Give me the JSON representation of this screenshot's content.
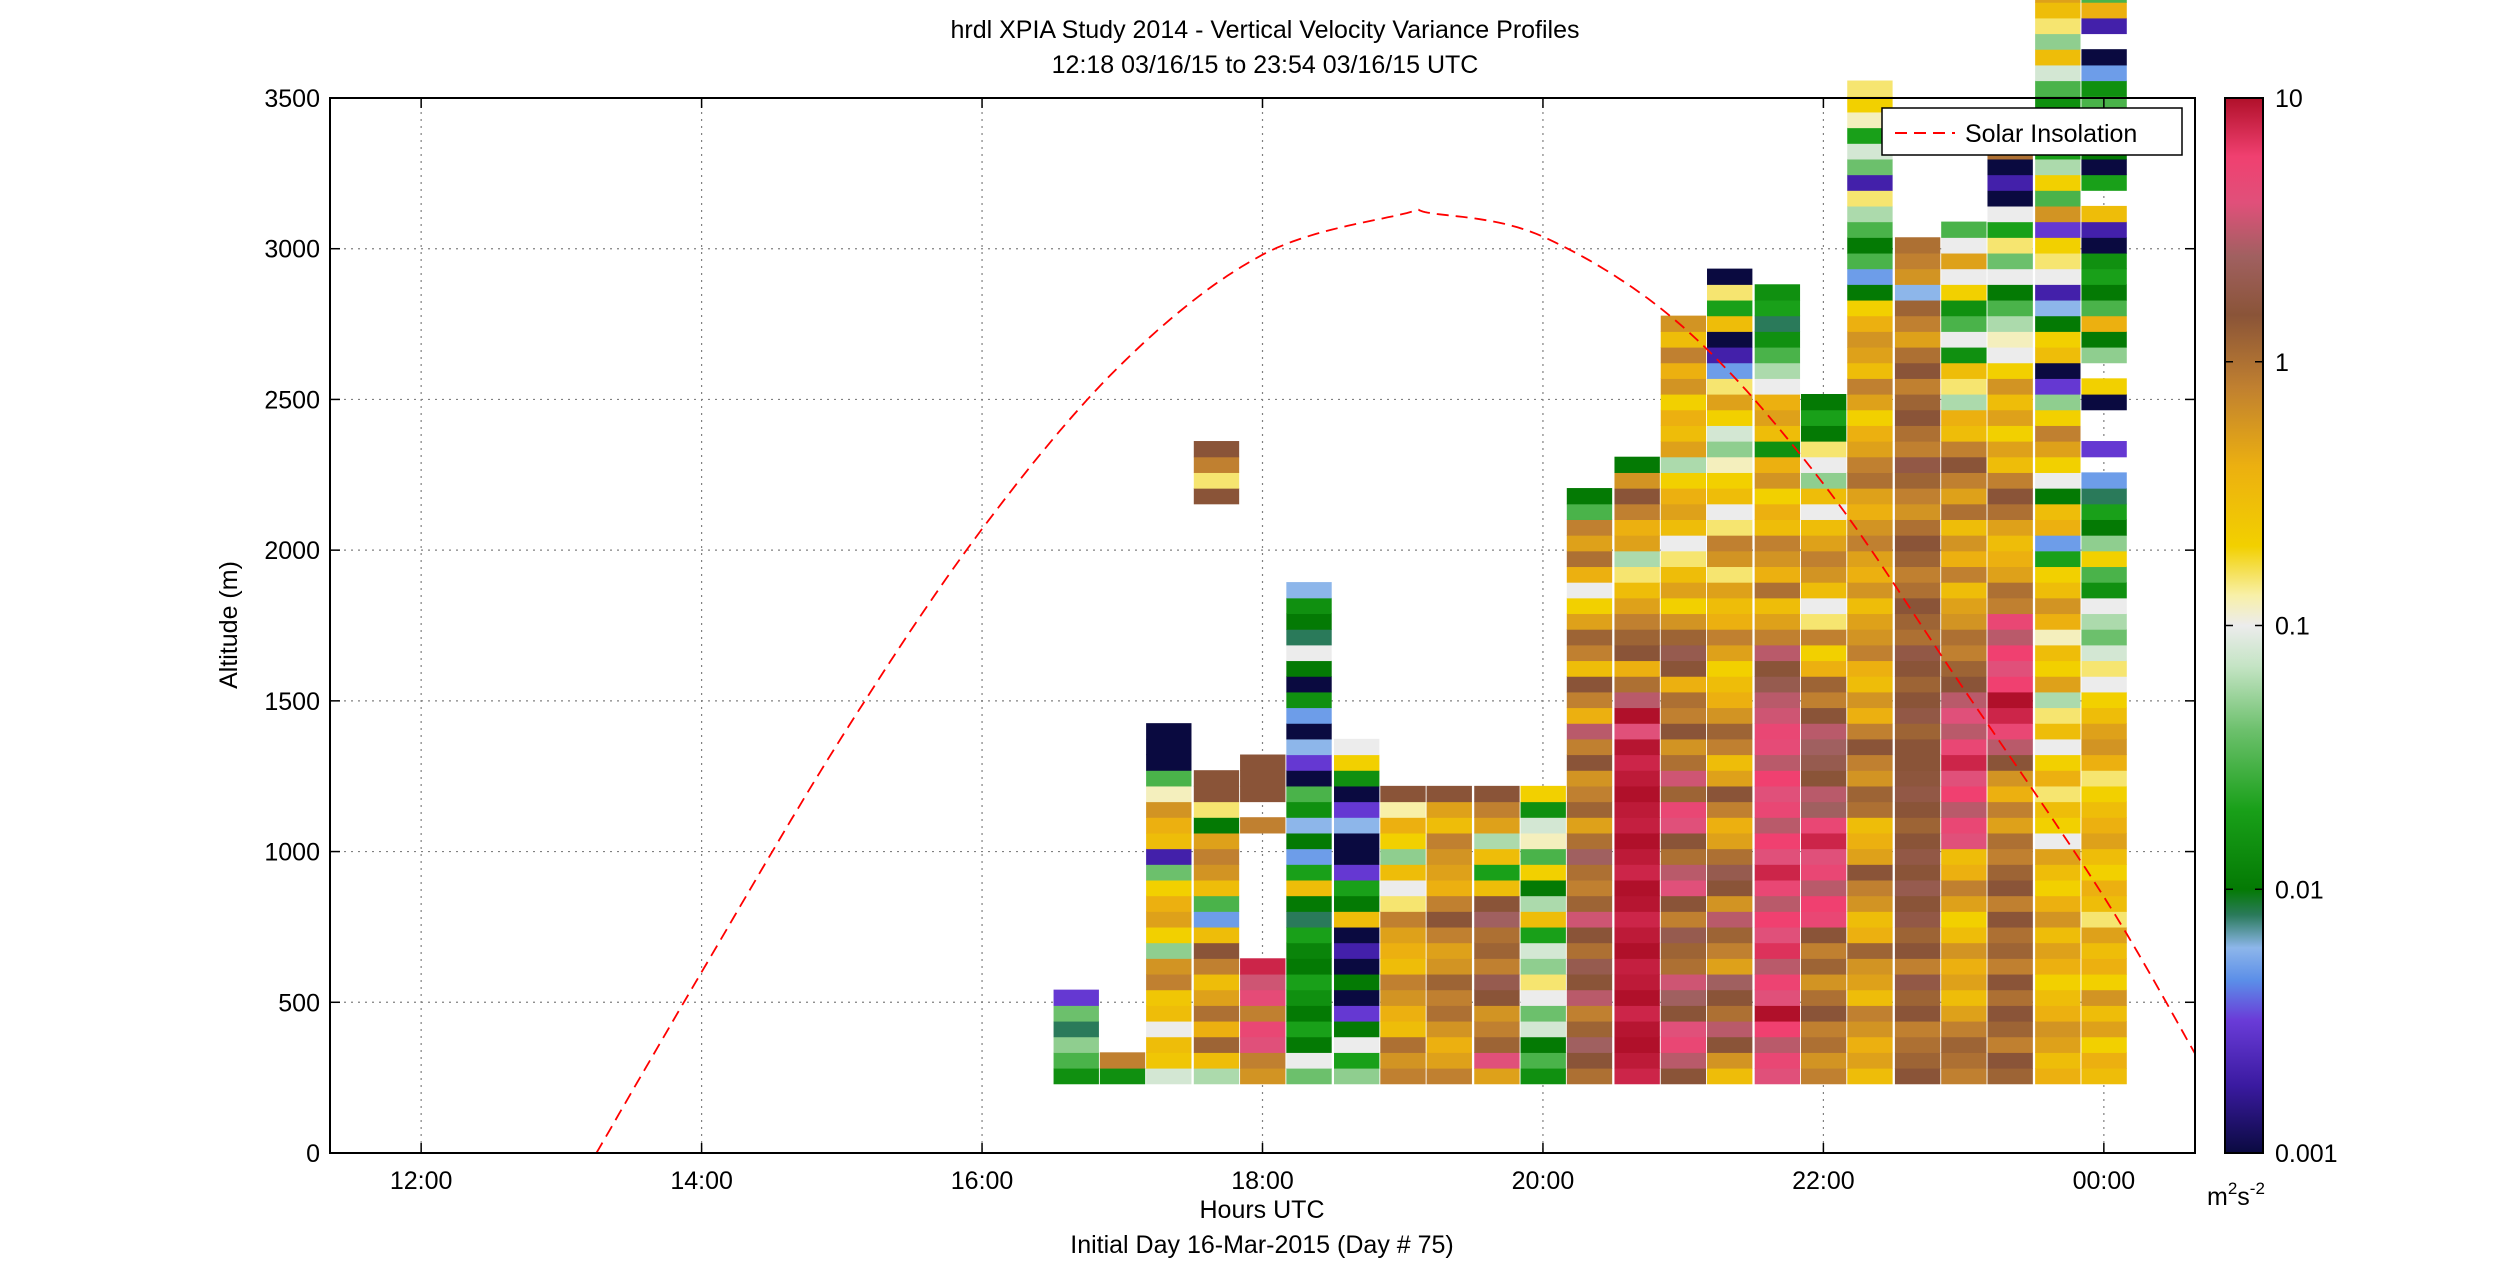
{
  "title": "hrdl XPIA Study 2014 - Vertical Velocity Variance Profiles",
  "subtitle": "12:18 03/16/15 to 23:54 03/16/15  UTC",
  "colors": {
    "background": "#ffffff",
    "axis": "#000000",
    "grid": "#808080",
    "insolation_line": "#ff0000"
  },
  "chart_data": {
    "type": "heatmap",
    "xlabel": "Hours UTC",
    "xlabel2": "Initial Day 16-Mar-2015 (Day # 75)",
    "ylabel": "Altitude (m)",
    "xlim": [
      11.35,
      24.65
    ],
    "ylim": [
      0,
      3500
    ],
    "x_ticks": [
      {
        "value": 12,
        "label": "12:00"
      },
      {
        "value": 14,
        "label": "14:00"
      },
      {
        "value": 16,
        "label": "16:00"
      },
      {
        "value": 18,
        "label": "18:00"
      },
      {
        "value": 20,
        "label": "20:00"
      },
      {
        "value": 22,
        "label": "22:00"
      },
      {
        "value": 24,
        "label": "00:00"
      }
    ],
    "y_ticks": [
      {
        "value": 0,
        "label": "0"
      },
      {
        "value": 500,
        "label": "500"
      },
      {
        "value": 1000,
        "label": "1000"
      },
      {
        "value": 1500,
        "label": "1500"
      },
      {
        "value": 2000,
        "label": "2000"
      },
      {
        "value": 2500,
        "label": "2500"
      },
      {
        "value": 3000,
        "label": "3000"
      },
      {
        "value": 3500,
        "label": "3500"
      }
    ],
    "grid": true,
    "legend": {
      "placement": "top-right",
      "entries": [
        "Solar Insolation"
      ]
    },
    "colorbar": {
      "scale": "log",
      "range": [
        0.001,
        10
      ],
      "units_base": "m",
      "units_exp1": "2",
      "units_mid": "s",
      "units_exp2": "-2",
      "ticks": [
        {
          "value": 10,
          "label": "10"
        },
        {
          "value": 1,
          "label": "1"
        },
        {
          "value": 0.1,
          "label": "0.1"
        },
        {
          "value": 0.01,
          "label": "0.01"
        },
        {
          "value": 0.001,
          "label": "0.001"
        }
      ],
      "stops": [
        {
          "v": 0.001,
          "c": "#0a0a40"
        },
        {
          "v": 0.0018,
          "c": "#3a1aa0"
        },
        {
          "v": 0.0032,
          "c": "#6a3cd8"
        },
        {
          "v": 0.0045,
          "c": "#5b8ee8"
        },
        {
          "v": 0.006,
          "c": "#8db6ea"
        },
        {
          "v": 0.008,
          "c": "#2a7a5a"
        },
        {
          "v": 0.01,
          "c": "#047a04"
        },
        {
          "v": 0.02,
          "c": "#19a019"
        },
        {
          "v": 0.04,
          "c": "#6cc06c"
        },
        {
          "v": 0.07,
          "c": "#c4e4c4"
        },
        {
          "v": 0.1,
          "c": "#ececec"
        },
        {
          "v": 0.13,
          "c": "#f8f0a8"
        },
        {
          "v": 0.2,
          "c": "#f2d000"
        },
        {
          "v": 0.4,
          "c": "#ecb010"
        },
        {
          "v": 0.8,
          "c": "#c08030"
        },
        {
          "v": 1.5,
          "c": "#8a5438"
        },
        {
          "v": 2.5,
          "c": "#a06060"
        },
        {
          "v": 4.0,
          "c": "#e0507a"
        },
        {
          "v": 6.0,
          "c": "#f04070"
        },
        {
          "v": 10,
          "c": "#b0102a"
        }
      ]
    },
    "bin_width_hours": 0.32,
    "gate_m": 52,
    "profiles": [
      {
        "t": 16.67,
        "values": [
          0.015,
          0.03,
          0.05,
          0.008,
          0.04,
          0.003
        ]
      },
      {
        "t": 17.0,
        "values": [
          0.015,
          0.8
        ]
      },
      {
        "t": 17.33,
        "values": [
          0.08,
          0.25,
          0.3,
          0.1,
          0.3,
          0.25,
          0.8,
          0.6,
          0.05,
          0.2,
          0.5,
          0.4,
          0.2,
          0.04,
          0.002,
          0.3,
          0.4,
          0.6,
          0.12,
          0.03,
          0.001,
          0.001,
          0.001
        ]
      },
      {
        "t": 17.67,
        "values": [
          0.06,
          0.3,
          1.2,
          0.4,
          1.0,
          0.5,
          0.3,
          0.8,
          1.5,
          0.3,
          0.005,
          0.03,
          0.3,
          0.6,
          0.8,
          0.5,
          0.01,
          0.15,
          1.5,
          1.5,
          null,
          null,
          null,
          null,
          null,
          null,
          null,
          null,
          null,
          null,
          null,
          null,
          null,
          null,
          null,
          null,
          null,
          1.5,
          0.15,
          0.8,
          1.5
        ]
      },
      {
        "t": 18.0,
        "values": [
          0.6,
          0.8,
          4.0,
          5.0,
          0.8,
          4.5,
          3.5,
          8.0,
          null,
          null,
          null,
          null,
          null,
          null,
          null,
          null,
          0.8,
          null,
          1.5,
          1.5,
          1.5
        ]
      },
      {
        "t": 18.33,
        "values": [
          0.04,
          0.1,
          0.01,
          0.02,
          0.01,
          0.015,
          0.02,
          0.01,
          0.012,
          0.02,
          0.008,
          0.01,
          0.3,
          0.02,
          0.005,
          0.01,
          0.006,
          0.015,
          0.03,
          0.001,
          0.003,
          0.006,
          0.001,
          0.005,
          0.015,
          0.001,
          0.01,
          0.1,
          0.008,
          0.01,
          0.015,
          0.006
        ]
      },
      {
        "t": 18.67,
        "values": [
          0.05,
          0.02,
          0.1,
          0.01,
          0.003,
          0.001,
          0.01,
          0.001,
          0.002,
          0.001,
          0.3,
          0.01,
          0.02,
          0.003,
          0.001,
          0.001,
          0.006,
          0.003,
          0.001,
          0.015,
          0.2,
          0.1
        ]
      },
      {
        "t": 19.0,
        "values": [
          0.8,
          0.6,
          1.0,
          0.3,
          0.4,
          0.6,
          0.8,
          0.3,
          0.4,
          0.5,
          0.8,
          0.15,
          0.1,
          0.3,
          0.05,
          0.2,
          0.4,
          0.13,
          1.5
        ]
      },
      {
        "t": 19.33,
        "values": [
          0.8,
          0.5,
          0.4,
          0.6,
          1.0,
          0.8,
          1.2,
          0.6,
          0.5,
          0.8,
          1.5,
          0.8,
          0.4,
          0.5,
          0.6,
          0.8,
          0.3,
          0.5,
          1.5
        ]
      },
      {
        "t": 19.67,
        "values": [
          0.5,
          4.0,
          1.2,
          0.8,
          0.6,
          1.5,
          2.0,
          0.8,
          1.2,
          1.0,
          2.5,
          1.5,
          0.3,
          0.02,
          0.3,
          0.06,
          0.5,
          0.8,
          1.5
        ]
      },
      {
        "t": 20.0,
        "values": [
          0.015,
          0.03,
          0.01,
          0.08,
          0.04,
          0.1,
          0.15,
          0.05,
          0.08,
          0.02,
          0.3,
          0.06,
          0.01,
          0.2,
          0.03,
          0.12,
          0.08,
          0.015,
          0.2
        ]
      },
      {
        "t": 20.33,
        "values": [
          1.0,
          1.5,
          2.5,
          1.2,
          0.8,
          3.0,
          1.5,
          2.0,
          1.0,
          1.5,
          3.5,
          1.2,
          0.8,
          1.0,
          2.5,
          1.0,
          0.5,
          1.2,
          0.8,
          0.6,
          1.5,
          0.8,
          3.0,
          0.4,
          0.8,
          1.5,
          0.3,
          0.8,
          1.2,
          0.5,
          0.2,
          0.1,
          0.4,
          1.0,
          0.5,
          0.8,
          0.03,
          0.01
        ]
      },
      {
        "t": 20.67,
        "values": [
          8.0,
          9.0,
          10.0,
          9.5,
          8.0,
          10.0,
          9.0,
          8.5,
          10.0,
          9.0,
          8.0,
          9.5,
          10.0,
          8.0,
          9.0,
          10.0,
          8.5,
          9.0,
          10.0,
          9.0,
          8.0,
          9.5,
          4.0,
          10.0,
          3.0,
          1.0,
          0.4,
          1.5,
          1.2,
          0.8,
          0.5,
          0.3,
          0.15,
          0.06,
          0.5,
          0.4,
          0.8,
          1.5,
          0.6,
          0.01
        ]
      },
      {
        "t": 21.0,
        "values": [
          1.5,
          3.0,
          5.0,
          4.0,
          1.5,
          2.5,
          3.5,
          1.0,
          1.2,
          2.0,
          0.8,
          1.5,
          4.0,
          3.0,
          1.0,
          1.5,
          4.0,
          5.0,
          1.2,
          3.5,
          1.0,
          0.6,
          1.5,
          0.8,
          1.0,
          0.4,
          1.5,
          2.0,
          1.2,
          0.6,
          0.2,
          0.5,
          0.3,
          0.15,
          0.1,
          0.3,
          0.5,
          0.4,
          0.2,
          0.06,
          0.5,
          0.3,
          0.4,
          0.2,
          0.6,
          0.4,
          0.8,
          0.3,
          0.6
        ]
      },
      {
        "t": 21.33,
        "values": [
          0.3,
          0.6,
          1.5,
          3.0,
          1.0,
          1.5,
          2.5,
          0.5,
          0.8,
          1.2,
          3.0,
          0.6,
          1.5,
          2.0,
          1.0,
          0.5,
          0.4,
          0.8,
          1.5,
          0.5,
          0.3,
          0.8,
          1.2,
          0.6,
          0.4,
          0.3,
          0.2,
          0.5,
          0.8,
          0.4,
          0.3,
          0.5,
          0.15,
          0.6,
          0.8,
          0.15,
          0.1,
          0.3,
          0.2,
          0.12,
          0.05,
          0.08,
          0.2,
          0.5,
          0.15,
          0.005,
          0.002,
          0.001,
          0.3,
          0.02,
          0.15,
          0.001
        ]
      },
      {
        "t": 21.67,
        "values": [
          4.0,
          5.0,
          3.0,
          6.0,
          10.0,
          4.0,
          5.5,
          3.0,
          7.0,
          4.0,
          6.0,
          3.0,
          5.0,
          8.0,
          4.0,
          6.0,
          3.0,
          5.0,
          4.0,
          6.0,
          3.0,
          4.5,
          5.0,
          3.5,
          3.0,
          2.0,
          1.5,
          3.0,
          0.8,
          0.5,
          0.3,
          1.0,
          0.4,
          0.6,
          0.8,
          0.3,
          0.4,
          0.2,
          0.6,
          0.4,
          0.015,
          0.3,
          0.5,
          0.4,
          0.1,
          0.06,
          0.03,
          0.015,
          0.008,
          0.02,
          0.015
        ]
      },
      {
        "t": 22.0,
        "values": [
          0.8,
          0.6,
          1.0,
          0.8,
          1.5,
          1.0,
          0.6,
          1.2,
          0.8,
          1.5,
          5.0,
          6.0,
          3.0,
          5.0,
          4.0,
          8.0,
          5.0,
          2.5,
          3.0,
          1.5,
          2.0,
          2.5,
          3.0,
          1.5,
          0.8,
          1.2,
          0.4,
          0.2,
          0.8,
          0.15,
          0.1,
          0.3,
          0.6,
          0.8,
          0.5,
          0.3,
          0.1,
          0.3,
          0.05,
          0.1,
          0.15,
          0.01,
          0.02,
          0.01
        ]
      },
      {
        "t": 22.33,
        "values": [
          0.3,
          0.5,
          0.4,
          0.6,
          0.8,
          0.3,
          0.5,
          0.6,
          1.2,
          0.4,
          0.3,
          0.6,
          0.8,
          1.5,
          0.5,
          0.4,
          0.3,
          1.0,
          1.2,
          0.6,
          0.8,
          1.5,
          0.8,
          0.4,
          0.6,
          0.3,
          0.4,
          0.8,
          0.6,
          0.5,
          0.3,
          0.6,
          0.4,
          0.5,
          0.8,
          0.6,
          0.4,
          0.5,
          1.0,
          0.8,
          0.5,
          0.4,
          0.2,
          0.5,
          0.8,
          0.3,
          0.5,
          0.6,
          0.4,
          0.2,
          0.01,
          0.005,
          0.03,
          0.01,
          0.03,
          0.06,
          0.15,
          0.002,
          0.04,
          0.08,
          0.02,
          0.12,
          0.2,
          0.15
        ]
      },
      {
        "t": 22.67,
        "values": [
          1.5,
          1.2,
          1.0,
          0.8,
          1.5,
          1.2,
          1.8,
          0.8,
          1.5,
          1.2,
          1.8,
          1.5,
          2.0,
          1.5,
          1.8,
          1.5,
          1.2,
          1.5,
          1.8,
          1.6,
          1.5,
          1.5,
          1.2,
          1.8,
          1.5,
          1.2,
          1.5,
          1.8,
          1.0,
          1.2,
          1.5,
          1.0,
          0.8,
          1.2,
          1.5,
          1.0,
          0.6,
          0.8,
          1.2,
          1.8,
          0.8,
          1.0,
          1.5,
          1.2,
          0.8,
          1.5,
          1.0,
          0.5,
          0.8,
          1.2,
          0.006,
          0.6,
          0.8,
          1.0
        ]
      },
      {
        "t": 23.0,
        "values": [
          0.8,
          1.0,
          1.2,
          0.8,
          0.5,
          0.3,
          0.5,
          0.4,
          0.6,
          0.3,
          0.2,
          0.5,
          0.8,
          0.4,
          0.3,
          4.0,
          5.0,
          3.0,
          6.0,
          4.0,
          8.0,
          5.0,
          3.0,
          4.0,
          3.0,
          1.5,
          1.2,
          0.8,
          1.0,
          0.6,
          0.5,
          0.3,
          0.8,
          0.4,
          0.6,
          0.3,
          1.0,
          0.5,
          0.8,
          1.5,
          0.8,
          0.3,
          0.4,
          0.06,
          0.15,
          0.3,
          0.015,
          0.1,
          0.03,
          0.015,
          0.2,
          0.1,
          0.5,
          0.1,
          0.03
        ]
      },
      {
        "t": 23.33,
        "values": [
          1.2,
          1.5,
          0.8,
          1.2,
          1.5,
          1.0,
          1.5,
          0.8,
          1.2,
          1.0,
          1.5,
          0.8,
          1.5,
          1.2,
          0.8,
          1.0,
          0.5,
          0.8,
          0.4,
          0.6,
          1.5,
          3.0,
          5.0,
          8.0,
          10.0,
          6.0,
          4.0,
          6.0,
          3.0,
          5.0,
          0.8,
          1.0,
          0.5,
          0.4,
          0.3,
          0.5,
          1.0,
          1.5,
          0.8,
          0.3,
          0.5,
          0.2,
          0.5,
          0.3,
          0.6,
          0.2,
          0.1,
          0.12,
          0.06,
          0.03,
          0.01,
          0.1,
          0.04,
          0.15,
          0.02,
          0.1,
          0.001,
          0.002,
          0.001,
          1.0,
          0.001
        ]
      },
      {
        "t": 23.67,
        "values": [
          0.4,
          0.3,
          0.5,
          0.6,
          0.4,
          0.3,
          0.2,
          0.4,
          0.5,
          0.3,
          0.6,
          0.4,
          0.2,
          0.3,
          0.5,
          0.1,
          0.2,
          0.3,
          0.15,
          0.4,
          0.2,
          0.1,
          0.3,
          0.15,
          0.06,
          0.5,
          0.2,
          0.3,
          0.12,
          0.4,
          0.6,
          0.3,
          0.2,
          0.02,
          0.005,
          0.4,
          0.3,
          0.01,
          0.1,
          0.2,
          0.5,
          0.8,
          0.2,
          0.05,
          0.003,
          0.001,
          0.3,
          0.2,
          0.01,
          0.006,
          0.002,
          0.1,
          0.15,
          0.2,
          0.003,
          0.6,
          0.03,
          0.2,
          0.06,
          0.02,
          0.3,
          0.005,
          0.015,
          0.03,
          0.08,
          0.3,
          0.05,
          0.15,
          0.3,
          0.5
        ]
      },
      {
        "t": 24.0,
        "values": [
          0.3,
          0.4,
          0.2,
          0.5,
          0.3,
          0.6,
          0.2,
          0.4,
          0.3,
          0.5,
          0.15,
          0.3,
          0.4,
          0.2,
          0.3,
          0.5,
          0.4,
          0.3,
          0.2,
          0.15,
          0.4,
          0.6,
          0.5,
          0.3,
          0.2,
          0.1,
          0.15,
          0.08,
          0.04,
          0.06,
          0.1,
          0.015,
          0.03,
          0.2,
          0.05,
          0.01,
          0.02,
          0.008,
          0.005,
          null,
          0.003,
          null,
          null,
          0.001,
          0.2,
          null,
          0.05,
          0.01,
          0.4,
          0.03,
          0.01,
          0.02,
          0.015,
          0.001,
          0.002,
          0.3,
          null,
          0.02,
          0.001,
          0.01,
          null,
          0.001,
          0.03,
          0.015,
          0.005,
          0.001,
          null,
          0.002,
          0.4,
          0.03,
          0.15,
          0.6
        ]
      }
    ],
    "insolation": {
      "name": "Solar Insolation",
      "x": [
        13.25,
        14.0,
        15.0,
        16.0,
        17.0,
        18.0,
        19.0,
        19.2,
        20.0,
        21.0,
        22.0,
        23.0,
        24.0,
        24.65
      ],
      "y": [
        0,
        600,
        1380,
        2070,
        2620,
        2980,
        3115,
        3118,
        3040,
        2740,
        2220,
        1540,
        850,
        330
      ]
    }
  }
}
